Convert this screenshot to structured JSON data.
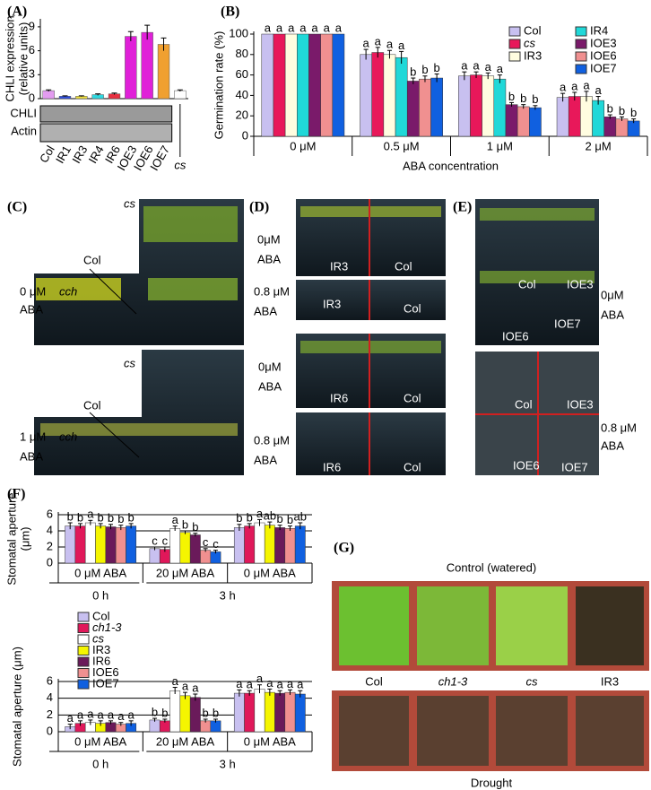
{
  "chart_data": [
    {
      "type": "bar",
      "panel": "(A)",
      "ylabel": [
        "CHLI expression",
        "(relative units)"
      ],
      "categories": [
        "Col",
        "IR1",
        "IR3",
        "IR4",
        "IR6",
        "IOE3",
        "IOE6",
        "IOE7",
        "cs"
      ],
      "values": [
        1.0,
        0.3,
        0.3,
        0.5,
        0.6,
        7.8,
        8.3,
        6.8,
        1.0
      ],
      "errors": [
        0.1,
        0.05,
        0.05,
        0.1,
        0.1,
        0.6,
        0.9,
        0.8,
        0.1
      ],
      "colors": [
        "#e39cf0",
        "#3050e0",
        "#f0e040",
        "#30d8e0",
        "#e83040",
        "#e020d8",
        "#e020d8",
        "#f0a030",
        "#ffffff"
      ],
      "ylim": [
        0,
        10
      ],
      "yticks": [
        0,
        3,
        6,
        9
      ],
      "blot_labels": [
        "CHLI",
        "Actin"
      ]
    },
    {
      "type": "grouped-bar",
      "panel": "(B)",
      "ylabel": "Germination rate (%)",
      "xlabel": "ABA concentration",
      "categories": [
        "0 μM",
        "0.5 μM",
        "1 μM",
        "2 μM"
      ],
      "series": [
        {
          "name": "Col",
          "color": "#c8c0f0",
          "values": [
            100,
            80,
            59,
            38
          ],
          "errors": [
            0,
            5,
            4,
            4
          ],
          "letters": [
            "a",
            "a",
            "a",
            "a"
          ]
        },
        {
          "name": "cs",
          "color": "#e8185a",
          "values": [
            100,
            82,
            60,
            39
          ],
          "errors": [
            0,
            5,
            3,
            4
          ],
          "letters": [
            "a",
            "a",
            "a",
            "a"
          ]
        },
        {
          "name": "IR3",
          "color": "#fffde0",
          "values": [
            100,
            80,
            59,
            39
          ],
          "errors": [
            0,
            4,
            3,
            5
          ],
          "letters": [
            "a",
            "a",
            "a",
            "a"
          ]
        },
        {
          "name": "IR4",
          "color": "#20d8d8",
          "values": [
            100,
            77,
            56,
            35
          ],
          "errors": [
            0,
            6,
            4,
            4
          ],
          "letters": [
            "a",
            "a",
            "a",
            "a"
          ]
        },
        {
          "name": "IOE3",
          "color": "#7a1a6a",
          "values": [
            100,
            54,
            31,
            19
          ],
          "errors": [
            0,
            3,
            2,
            2
          ],
          "letters": [
            "a",
            "b",
            "b",
            "b"
          ]
        },
        {
          "name": "IOE6",
          "color": "#f09090",
          "values": [
            100,
            56,
            29,
            17
          ],
          "errors": [
            0,
            3,
            2,
            2
          ],
          "letters": [
            "a",
            "b",
            "b",
            "b"
          ]
        },
        {
          "name": "IOE7",
          "color": "#1060e0",
          "values": [
            100,
            57,
            28,
            15
          ],
          "errors": [
            0,
            4,
            2,
            2
          ],
          "letters": [
            "a",
            "b",
            "b",
            "b"
          ]
        }
      ],
      "ylim": [
        0,
        100
      ],
      "yticks": [
        0,
        20,
        40,
        60,
        80,
        100
      ],
      "legend": "upper right"
    },
    {
      "type": "grouped-bar",
      "panel": "(F)",
      "ylabel": [
        "Stomatal aperture",
        "(μm)"
      ],
      "categories": [
        "0 μM ABA",
        "20 μM ABA",
        "0 μM ABA"
      ],
      "time_labels": [
        "0 h",
        "3 h"
      ],
      "series": [
        {
          "name": "Col",
          "color": "#c8c0f0",
          "values": [
            4.6,
            1.8,
            4.4
          ],
          "errors": [
            0.4,
            0.2,
            0.4
          ],
          "letters": [
            "b",
            "c",
            "b"
          ]
        },
        {
          "name": "ch1-3",
          "color": "#e0185a",
          "values": [
            4.6,
            1.7,
            4.6
          ],
          "errors": [
            0.3,
            0.3,
            0.3
          ],
          "letters": [
            "b",
            "c",
            "b"
          ]
        },
        {
          "name": "cs",
          "color": "#ffffff",
          "values": [
            5.0,
            4.3,
            5.0
          ],
          "errors": [
            0.3,
            0.3,
            0.4
          ],
          "letters": [
            "a",
            "a",
            "a"
          ]
        },
        {
          "name": "IR3",
          "color": "#f5f500",
          "values": [
            4.6,
            3.8,
            4.7
          ],
          "errors": [
            0.3,
            0.2,
            0.4
          ],
          "letters": [
            "b",
            "b",
            "ab"
          ]
        },
        {
          "name": "IR6",
          "color": "#6a1a5a",
          "values": [
            4.5,
            3.5,
            4.4
          ],
          "errors": [
            0.3,
            0.2,
            0.3
          ],
          "letters": [
            "b",
            "b",
            "b"
          ]
        },
        {
          "name": "IOE6",
          "color": "#f09090",
          "values": [
            4.4,
            1.6,
            4.3
          ],
          "errors": [
            0.3,
            0.2,
            0.3
          ],
          "letters": [
            "b",
            "c",
            "b"
          ]
        },
        {
          "name": "IOE7",
          "color": "#1060e0",
          "values": [
            4.6,
            1.4,
            4.6
          ],
          "errors": [
            0.3,
            0.2,
            0.4
          ],
          "letters": [
            "b",
            "c",
            "ab"
          ]
        }
      ],
      "ylim": [
        0,
        6
      ],
      "yticks": [
        0,
        2,
        4,
        6
      ],
      "grid": true
    },
    {
      "type": "grouped-bar",
      "ylabel": [
        "Stomatal aperture (μm)"
      ],
      "categories": [
        "0 μM ABA",
        "20 μM ABA",
        "0 μM ABA"
      ],
      "time_labels": [
        "0 h",
        "3 h"
      ],
      "series": [
        {
          "name": "Col",
          "color": "#c8c0f0",
          "values": [
            0.6,
            1.4,
            4.6
          ],
          "errors": [
            0.3,
            0.2,
            0.4
          ],
          "letters": [
            "a",
            "b",
            "a"
          ]
        },
        {
          "name": "ch1-3",
          "color": "#e0185a",
          "values": [
            1.0,
            1.3,
            4.6
          ],
          "errors": [
            0.3,
            0.2,
            0.3
          ],
          "letters": [
            "a",
            "b",
            "a"
          ]
        },
        {
          "name": "cs",
          "color": "#ffffff",
          "values": [
            1.1,
            4.9,
            5.1
          ],
          "errors": [
            0.3,
            0.4,
            0.5
          ],
          "letters": [
            "a",
            "a",
            "a"
          ]
        },
        {
          "name": "IR3",
          "color": "#f5f500",
          "values": [
            1.0,
            4.3,
            4.7
          ],
          "errors": [
            0.3,
            0.4,
            0.4
          ],
          "letters": [
            "a",
            "a",
            "a"
          ]
        },
        {
          "name": "IR6",
          "color": "#6a1a5a",
          "values": [
            1.1,
            4.1,
            4.6
          ],
          "errors": [
            0.2,
            0.4,
            0.3
          ],
          "letters": [
            "a",
            "a",
            "a"
          ]
        },
        {
          "name": "IOE6",
          "color": "#f09090",
          "values": [
            0.9,
            1.3,
            4.7
          ],
          "errors": [
            0.2,
            0.2,
            0.3
          ],
          "letters": [
            "a",
            "b",
            "a"
          ]
        },
        {
          "name": "IOE7",
          "color": "#1060e0",
          "values": [
            1.0,
            1.3,
            4.5
          ],
          "errors": [
            0.3,
            0.2,
            0.4
          ],
          "letters": [
            "a",
            "b",
            "a"
          ]
        }
      ],
      "ylim": [
        0,
        6
      ],
      "yticks": [
        0,
        2,
        4,
        6
      ],
      "grid": true,
      "legend": "upper left"
    }
  ],
  "photos": [
    {
      "panel": "(C)",
      "labels": [
        "cs",
        "Col",
        "0 μM",
        "ABA",
        "cch",
        "cs",
        "Col",
        "1 μM",
        "cch",
        "ABA"
      ]
    },
    {
      "panel": "(D)",
      "labels": [
        "0μM",
        "ABA",
        "IR3",
        "Col",
        "0.8 μM",
        "ABA",
        "IR3",
        "Col",
        "0μM",
        "ABA",
        "IR6",
        "Col",
        "0.8 μM",
        "ABA",
        "IR6",
        "Col"
      ]
    },
    {
      "panel": "(E)",
      "labels": [
        "Col",
        "IOE3",
        "0μM",
        "ABA",
        "IOE6",
        "IOE7",
        "Col",
        "IOE3",
        "0.8 μM",
        "ABA",
        "IOE6",
        "IOE7"
      ]
    },
    {
      "panel": "(G)",
      "labels": [
        "Control (watered)",
        "Col",
        "ch1-3",
        "cs",
        "IR3",
        "Drought"
      ]
    }
  ]
}
